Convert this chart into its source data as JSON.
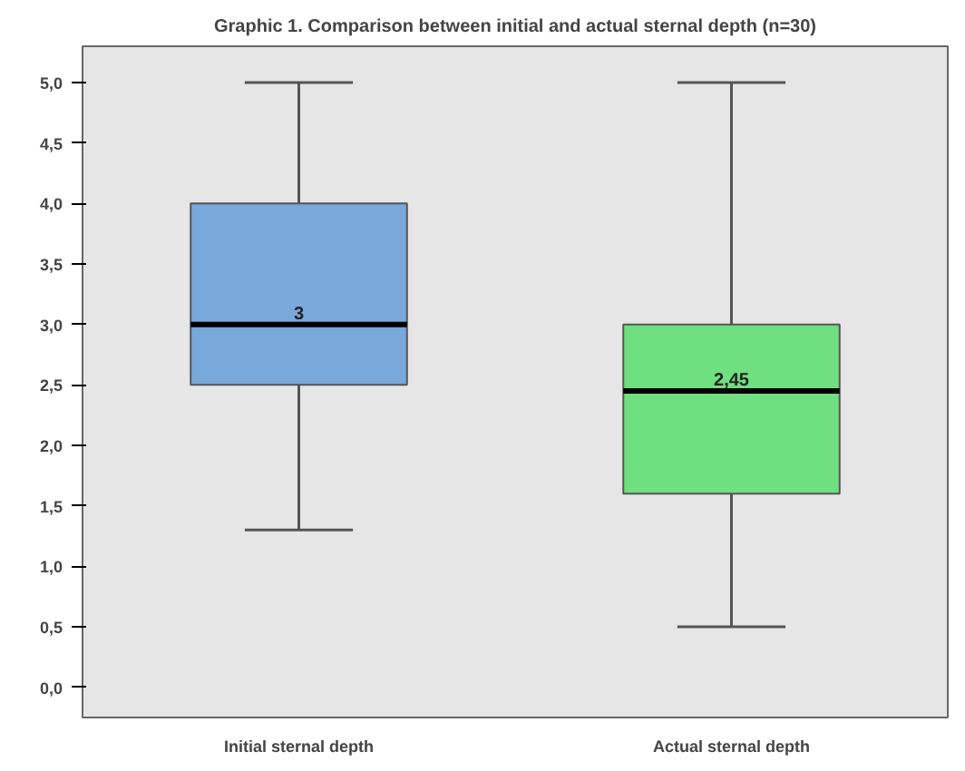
{
  "chart_data": {
    "type": "box",
    "title": "Graphic 1. Comparison between initial and actual sternal depth (n=30)",
    "categories": [
      "Initial sternal depth",
      "Actual sternal depth"
    ],
    "boxes": [
      {
        "low": 1.3,
        "q1": 2.5,
        "median": 3.0,
        "q3": 4.0,
        "high": 5.0
      },
      {
        "low": 0.5,
        "q1": 1.6,
        "median": 2.45,
        "q3": 3.0,
        "high": 5.0
      }
    ],
    "colors": [
      "#79a8da",
      "#6fdf80"
    ],
    "ylim": [
      -0.25,
      5.3
    ],
    "yticks": [
      {
        "value": 0,
        "label": "0,0"
      },
      {
        "value": 0.5,
        "label": "0,5"
      },
      {
        "value": 1,
        "label": "1,0"
      },
      {
        "value": 1.5,
        "label": "1,5"
      },
      {
        "value": 2,
        "label": "2,0"
      },
      {
        "value": 2.5,
        "label": "2,5"
      },
      {
        "value": 3,
        "label": "3,0"
      },
      {
        "value": 3.5,
        "label": "3,5"
      },
      {
        "value": 4,
        "label": "4,0"
      },
      {
        "value": 4.5,
        "label": "4,5"
      },
      {
        "value": 5,
        "label": "5,0"
      }
    ],
    "annotations": [
      {
        "text": "3",
        "x": "Initial sternal depth",
        "y": 3.0
      },
      {
        "text": "2,45",
        "x": "Actual sternal depth",
        "y": 2.45
      }
    ],
    "grid": false
  }
}
